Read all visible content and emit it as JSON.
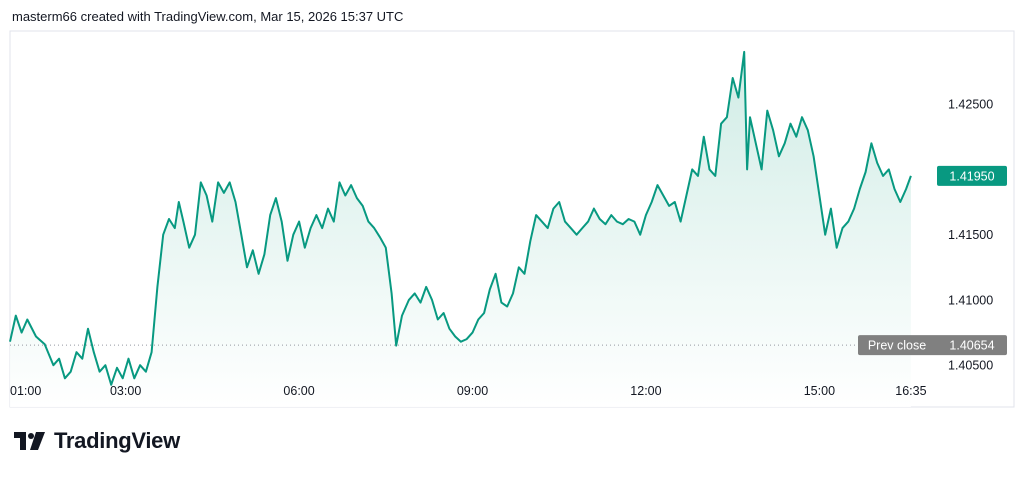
{
  "header": {
    "attribution": "masterm66 created with TradingView.com, Mar 15, 2026 15:37 UTC"
  },
  "brand": {
    "name": "TradingView",
    "logo_icon": "tradingview-logo-icon"
  },
  "colors": {
    "line": "#089981",
    "fill_top": "#cdebe4",
    "fill_bottom": "#ffffff",
    "prev_close_bg": "#808080",
    "last_bg": "#089981",
    "border": "#e0e3eb"
  },
  "chart_data": {
    "type": "area",
    "x_unit": "time (hours)",
    "x_ticks": [
      {
        "label": "01:00",
        "hour": 1.0
      },
      {
        "label": "03:00",
        "hour": 3.0
      },
      {
        "label": "06:00",
        "hour": 6.0
      },
      {
        "label": "09:00",
        "hour": 9.0
      },
      {
        "label": "12:00",
        "hour": 12.0
      },
      {
        "label": "15:00",
        "hour": 15.0
      },
      {
        "label": "16:35",
        "hour": 16.583
      }
    ],
    "y_ticks": [
      "1.42500",
      "1.41500",
      "1.41000",
      "1.40500"
    ],
    "ylim": [
      1.4018,
      1.4306
    ],
    "xlim": [
      1.0,
      17.0
    ],
    "prev_close": {
      "label": "Prev close",
      "value": "1.40654",
      "numeric": 1.40654
    },
    "last_price": {
      "value": "1.41950",
      "numeric": 1.4195
    },
    "series": [
      {
        "points": [
          [
            1.0,
            1.4068
          ],
          [
            1.1,
            1.4088
          ],
          [
            1.2,
            1.4075
          ],
          [
            1.3,
            1.4085
          ],
          [
            1.45,
            1.4072
          ],
          [
            1.6,
            1.4066
          ],
          [
            1.75,
            1.405
          ],
          [
            1.85,
            1.4055
          ],
          [
            1.95,
            1.404
          ],
          [
            2.05,
            1.4045
          ],
          [
            2.15,
            1.406
          ],
          [
            2.25,
            1.4055
          ],
          [
            2.35,
            1.4078
          ],
          [
            2.45,
            1.406
          ],
          [
            2.55,
            1.4045
          ],
          [
            2.65,
            1.405
          ],
          [
            2.75,
            1.4035
          ],
          [
            2.85,
            1.4048
          ],
          [
            2.95,
            1.404
          ],
          [
            3.05,
            1.4055
          ],
          [
            3.15,
            1.404
          ],
          [
            3.25,
            1.405
          ],
          [
            3.35,
            1.4045
          ],
          [
            3.45,
            1.406
          ],
          [
            3.55,
            1.411
          ],
          [
            3.65,
            1.415
          ],
          [
            3.75,
            1.4162
          ],
          [
            3.85,
            1.4155
          ],
          [
            3.92,
            1.4175
          ],
          [
            4.0,
            1.416
          ],
          [
            4.1,
            1.414
          ],
          [
            4.2,
            1.415
          ],
          [
            4.3,
            1.419
          ],
          [
            4.4,
            1.418
          ],
          [
            4.5,
            1.416
          ],
          [
            4.6,
            1.419
          ],
          [
            4.7,
            1.4182
          ],
          [
            4.8,
            1.419
          ],
          [
            4.9,
            1.4175
          ],
          [
            5.0,
            1.415
          ],
          [
            5.1,
            1.4125
          ],
          [
            5.2,
            1.4138
          ],
          [
            5.3,
            1.412
          ],
          [
            5.4,
            1.4135
          ],
          [
            5.5,
            1.4165
          ],
          [
            5.6,
            1.4178
          ],
          [
            5.7,
            1.416
          ],
          [
            5.8,
            1.413
          ],
          [
            5.9,
            1.415
          ],
          [
            6.0,
            1.416
          ],
          [
            6.1,
            1.414
          ],
          [
            6.2,
            1.4155
          ],
          [
            6.3,
            1.4165
          ],
          [
            6.4,
            1.4155
          ],
          [
            6.5,
            1.417
          ],
          [
            6.6,
            1.416
          ],
          [
            6.7,
            1.419
          ],
          [
            6.8,
            1.418
          ],
          [
            6.9,
            1.4188
          ],
          [
            7.0,
            1.4178
          ],
          [
            7.1,
            1.4172
          ],
          [
            7.2,
            1.416
          ],
          [
            7.3,
            1.4155
          ],
          [
            7.4,
            1.4148
          ],
          [
            7.5,
            1.414
          ],
          [
            7.6,
            1.4105
          ],
          [
            7.68,
            1.4065
          ],
          [
            7.78,
            1.4088
          ],
          [
            7.9,
            1.41
          ],
          [
            8.0,
            1.4105
          ],
          [
            8.1,
            1.4098
          ],
          [
            8.2,
            1.411
          ],
          [
            8.3,
            1.41
          ],
          [
            8.4,
            1.4085
          ],
          [
            8.5,
            1.409
          ],
          [
            8.6,
            1.4078
          ],
          [
            8.7,
            1.4072
          ],
          [
            8.8,
            1.4068
          ],
          [
            8.9,
            1.407
          ],
          [
            9.0,
            1.4075
          ],
          [
            9.1,
            1.4085
          ],
          [
            9.2,
            1.409
          ],
          [
            9.3,
            1.4108
          ],
          [
            9.4,
            1.412
          ],
          [
            9.5,
            1.4098
          ],
          [
            9.6,
            1.4095
          ],
          [
            9.7,
            1.4105
          ],
          [
            9.8,
            1.4125
          ],
          [
            9.9,
            1.412
          ],
          [
            10.0,
            1.4145
          ],
          [
            10.1,
            1.4165
          ],
          [
            10.2,
            1.416
          ],
          [
            10.3,
            1.4155
          ],
          [
            10.4,
            1.417
          ],
          [
            10.5,
            1.4175
          ],
          [
            10.6,
            1.416
          ],
          [
            10.7,
            1.4155
          ],
          [
            10.8,
            1.415
          ],
          [
            10.9,
            1.4155
          ],
          [
            11.0,
            1.416
          ],
          [
            11.1,
            1.417
          ],
          [
            11.2,
            1.4162
          ],
          [
            11.3,
            1.4158
          ],
          [
            11.4,
            1.4165
          ],
          [
            11.5,
            1.416
          ],
          [
            11.6,
            1.4158
          ],
          [
            11.7,
            1.4162
          ],
          [
            11.8,
            1.416
          ],
          [
            11.9,
            1.415
          ],
          [
            12.0,
            1.4165
          ],
          [
            12.1,
            1.4175
          ],
          [
            12.2,
            1.4188
          ],
          [
            12.3,
            1.418
          ],
          [
            12.4,
            1.4172
          ],
          [
            12.5,
            1.4175
          ],
          [
            12.6,
            1.416
          ],
          [
            12.7,
            1.418
          ],
          [
            12.8,
            1.42
          ],
          [
            12.9,
            1.4195
          ],
          [
            13.0,
            1.4225
          ],
          [
            13.1,
            1.42
          ],
          [
            13.2,
            1.4195
          ],
          [
            13.3,
            1.4235
          ],
          [
            13.4,
            1.424
          ],
          [
            13.5,
            1.427
          ],
          [
            13.6,
            1.4255
          ],
          [
            13.7,
            1.429
          ],
          [
            13.75,
            1.42
          ],
          [
            13.8,
            1.424
          ],
          [
            13.9,
            1.422
          ],
          [
            14.0,
            1.42
          ],
          [
            14.1,
            1.4245
          ],
          [
            14.2,
            1.423
          ],
          [
            14.3,
            1.421
          ],
          [
            14.4,
            1.422
          ],
          [
            14.5,
            1.4235
          ],
          [
            14.6,
            1.4225
          ],
          [
            14.7,
            1.424
          ],
          [
            14.8,
            1.423
          ],
          [
            14.9,
            1.421
          ],
          [
            15.0,
            1.418
          ],
          [
            15.1,
            1.415
          ],
          [
            15.2,
            1.417
          ],
          [
            15.3,
            1.414
          ],
          [
            15.4,
            1.4155
          ],
          [
            15.5,
            1.416
          ],
          [
            15.6,
            1.417
          ],
          [
            15.7,
            1.4185
          ],
          [
            15.8,
            1.4198
          ],
          [
            15.9,
            1.422
          ],
          [
            16.0,
            1.4205
          ],
          [
            16.1,
            1.4195
          ],
          [
            16.2,
            1.42
          ],
          [
            16.3,
            1.4185
          ],
          [
            16.4,
            1.4175
          ],
          [
            16.5,
            1.4185
          ],
          [
            16.583,
            1.4195
          ]
        ]
      }
    ]
  }
}
